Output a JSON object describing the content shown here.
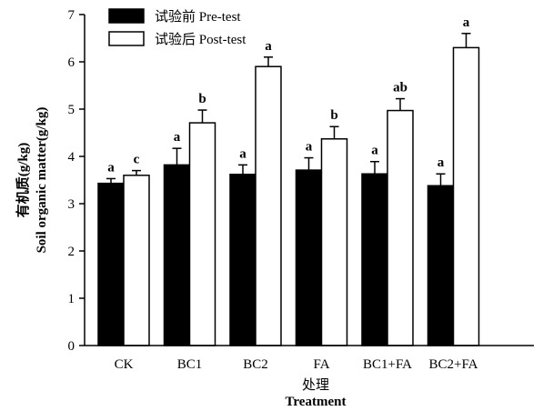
{
  "chart_data": {
    "type": "bar",
    "categories": [
      "CK",
      "BC1",
      "BC2",
      "FA",
      "BC1+FA",
      "BC2+FA"
    ],
    "series": [
      {
        "name": "试验前 Pre-test",
        "values": [
          3.43,
          3.82,
          3.62,
          3.71,
          3.63,
          3.38
        ],
        "errors": [
          0.1,
          0.35,
          0.2,
          0.26,
          0.26,
          0.25
        ],
        "labels": [
          "a",
          "a",
          "a",
          "a",
          "a",
          "a"
        ],
        "fill": "#000000"
      },
      {
        "name": "试验后 Post-test",
        "values": [
          3.6,
          4.71,
          5.9,
          4.37,
          4.97,
          6.3
        ],
        "errors": [
          0.1,
          0.27,
          0.2,
          0.26,
          0.25,
          0.3
        ],
        "labels": [
          "c",
          "b",
          "a",
          "b",
          "ab",
          "a"
        ],
        "fill": "#ffffff"
      }
    ],
    "ylim": [
      0,
      7
    ],
    "yticks": [
      "0",
      "1",
      "2",
      "3",
      "4",
      "5",
      "6",
      "7"
    ],
    "ylabel_cn": "有机质(g/kg)",
    "ylabel_en": "Soil organic matter(g/kg)",
    "xlabel_cn": "处理",
    "xlabel_en": "Treatment",
    "legend_position": "top-left",
    "grid": false
  }
}
